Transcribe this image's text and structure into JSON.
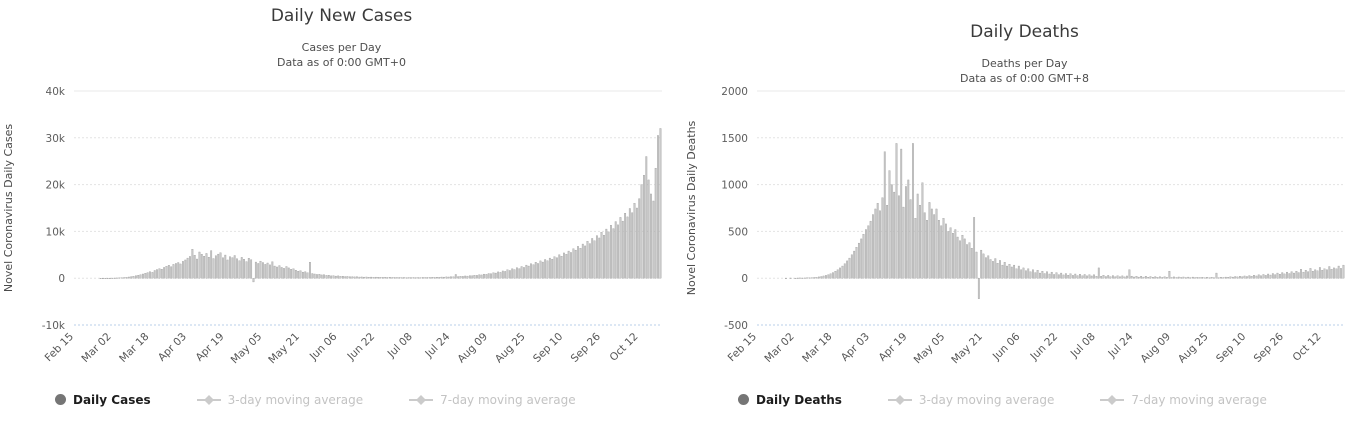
{
  "chart_data": [
    {
      "type": "bar",
      "title": "Daily New Cases",
      "subtitle": "Cases per Day",
      "subtitle2": "Data as of 0:00 GMT+0",
      "ylabel": "Novel Coronavirus Daily Cases",
      "ylim": [
        -10000,
        40000
      ],
      "y_ticks": [
        40000,
        30000,
        20000,
        10000,
        0,
        -10000
      ],
      "y_tick_labels": [
        "40k",
        "30k",
        "20k",
        "10k",
        "0",
        "-10k"
      ],
      "x_tick_labels": [
        "Feb 15",
        "Mar 02",
        "Mar 18",
        "Apr 03",
        "Apr 19",
        "May 05",
        "May 21",
        "Jun 06",
        "Jun 22",
        "Jul 08",
        "Jul 24",
        "Aug 09",
        "Aug 25",
        "Sep 10",
        "Sep 26",
        "Oct 12"
      ],
      "x_tick_interval": 16,
      "grid": "horizontal dashed",
      "legend_position": "bottom-left",
      "bar_color": "#c9c9c9",
      "bar_border_color": "#909090",
      "legend": [
        {
          "label": "Daily Cases",
          "active": true,
          "marker": "circle"
        },
        {
          "label": "3-day moving average",
          "active": false,
          "marker": "diamond-line"
        },
        {
          "label": "7-day moving average",
          "active": false,
          "marker": "diamond-line"
        }
      ],
      "values": [
        0,
        0,
        0,
        0,
        0,
        0,
        0,
        0,
        0,
        0,
        0,
        5,
        8,
        12,
        15,
        20,
        30,
        40,
        60,
        80,
        110,
        150,
        200,
        260,
        340,
        430,
        530,
        640,
        760,
        900,
        1050,
        1200,
        1400,
        1250,
        1650,
        1850,
        2050,
        1900,
        2300,
        2550,
        2750,
        2450,
        2950,
        3150,
        3350,
        3050,
        3600,
        3900,
        4300,
        4650,
        6200,
        4900,
        4100,
        5600,
        5100,
        4700,
        5300,
        4500,
        5900,
        4200,
        4800,
        5150,
        5450,
        4350,
        4950,
        3900,
        4600,
        4400,
        4850,
        4150,
        3750,
        4450,
        4050,
        3550,
        4250,
        3950,
        -800,
        3450,
        3150,
        3650,
        3350,
        2950,
        3250,
        2850,
        3500,
        2600,
        2400,
        2700,
        2300,
        2100,
        2500,
        2200,
        1900,
        2000,
        1700,
        1500,
        1600,
        1300,
        1400,
        1150,
        3400,
        1000,
        900,
        800,
        850,
        700,
        750,
        600,
        650,
        500,
        550,
        450,
        500,
        400,
        420,
        350,
        380,
        300,
        330,
        280,
        310,
        250,
        270,
        230,
        260,
        220,
        240,
        200,
        230,
        190,
        210,
        180,
        200,
        170,
        190,
        160,
        180,
        150,
        170,
        140,
        160,
        130,
        150,
        140,
        160,
        130,
        150,
        140,
        170,
        150,
        180,
        160,
        200,
        180,
        220,
        200,
        250,
        230,
        280,
        260,
        320,
        300,
        800,
        350,
        420,
        390,
        480,
        450,
        550,
        520,
        640,
        600,
        750,
        700,
        870,
        820,
        1000,
        950,
        1150,
        1100,
        1350,
        1250,
        1550,
        1450,
        1800,
        1650,
        2000,
        1850,
        2250,
        2050,
        2500,
        2300,
        2800,
        2600,
        3100,
        2900,
        3400,
        3150,
        3700,
        3450,
        4000,
        3750,
        4300,
        4050,
        4600,
        4350,
        5000,
        4700,
        5400,
        5100,
        5800,
        5500,
        6300,
        6000,
        6800,
        6400,
        7300,
        6900,
        7900,
        7400,
        8500,
        8000,
        9100,
        8600,
        9800,
        9200,
        10500,
        9900,
        11300,
        10600,
        12100,
        11400,
        13000,
        12200,
        13900,
        13100,
        14900,
        14000,
        16000,
        15000,
        17000,
        20000,
        22000,
        26000,
        21000,
        18000,
        16500,
        23500,
        30500,
        32000
      ]
    },
    {
      "type": "bar",
      "title": "Daily Deaths",
      "subtitle": "Deaths per Day",
      "subtitle2": "Data as of 0:00 GMT+8",
      "ylabel": "Novel Coronavirus Daily Deaths",
      "ylim": [
        -500,
        2000
      ],
      "y_ticks": [
        2000,
        1500,
        1000,
        500,
        0,
        -500
      ],
      "y_tick_labels": [
        "2000",
        "1500",
        "1000",
        "500",
        "0",
        "-500"
      ],
      "x_tick_labels": [
        "Feb 15",
        "Mar 02",
        "Mar 18",
        "Apr 03",
        "Apr 19",
        "May 05",
        "May 21",
        "Jun 06",
        "Jun 22",
        "Jul 08",
        "Jul 24",
        "Aug 09",
        "Aug 25",
        "Sep 10",
        "Sep 26",
        "Oct 12"
      ],
      "x_tick_interval": 16,
      "grid": "horizontal dashed",
      "legend_position": "bottom-left",
      "bar_color": "#c9c9c9",
      "bar_border_color": "#909090",
      "legend": [
        {
          "label": "Daily Deaths",
          "active": true,
          "marker": "circle"
        },
        {
          "label": "3-day moving average",
          "active": false,
          "marker": "diamond-line"
        },
        {
          "label": "7-day moving average",
          "active": false,
          "marker": "diamond-line"
        }
      ],
      "values": [
        0,
        0,
        0,
        0,
        0,
        0,
        0,
        0,
        0,
        0,
        0,
        0,
        1,
        0,
        2,
        0,
        1,
        2,
        3,
        2,
        3,
        4,
        5,
        6,
        8,
        10,
        14,
        18,
        24,
        30,
        38,
        48,
        60,
        75,
        90,
        110,
        130,
        155,
        185,
        215,
        250,
        290,
        330,
        375,
        420,
        470,
        520,
        560,
        610,
        680,
        740,
        800,
        720,
        860,
        1350,
        780,
        1150,
        1000,
        920,
        1440,
        880,
        1380,
        760,
        980,
        1050,
        840,
        1440,
        640,
        900,
        780,
        1020,
        700,
        620,
        810,
        740,
        680,
        740,
        620,
        560,
        640,
        580,
        500,
        540,
        480,
        520,
        440,
        400,
        460,
        420,
        360,
        380,
        320,
        650,
        280,
        -220,
        300,
        260,
        220,
        240,
        200,
        180,
        210,
        160,
        190,
        140,
        170,
        130,
        150,
        120,
        140,
        100,
        130,
        90,
        110,
        80,
        100,
        70,
        90,
        60,
        85,
        55,
        75,
        50,
        70,
        45,
        65,
        40,
        60,
        38,
        55,
        35,
        50,
        32,
        48,
        30,
        45,
        28,
        42,
        26,
        40,
        25,
        38,
        24,
        36,
        22,
        110,
        20,
        32,
        18,
        30,
        17,
        28,
        16,
        26,
        15,
        25,
        14,
        24,
        90,
        22,
        13,
        21,
        12,
        20,
        12,
        20,
        11,
        18,
        10,
        17,
        10,
        16,
        9,
        15,
        9,
        75,
        8,
        14,
        8,
        13,
        8,
        13,
        7,
        12,
        7,
        12,
        7,
        11,
        7,
        11,
        6,
        10,
        6,
        10,
        6,
        55,
        6,
        10,
        8,
        12,
        10,
        15,
        12,
        18,
        14,
        20,
        16,
        24,
        18,
        28,
        20,
        32,
        24,
        36,
        26,
        40,
        30,
        45,
        34,
        50,
        38,
        55,
        42,
        60,
        46,
        65,
        50,
        70,
        55,
        75,
        60,
        95,
        65,
        85,
        70,
        105,
        75,
        90,
        80,
        115,
        85,
        100,
        90,
        125,
        95,
        110,
        100,
        130,
        105,
        140
      ]
    }
  ]
}
